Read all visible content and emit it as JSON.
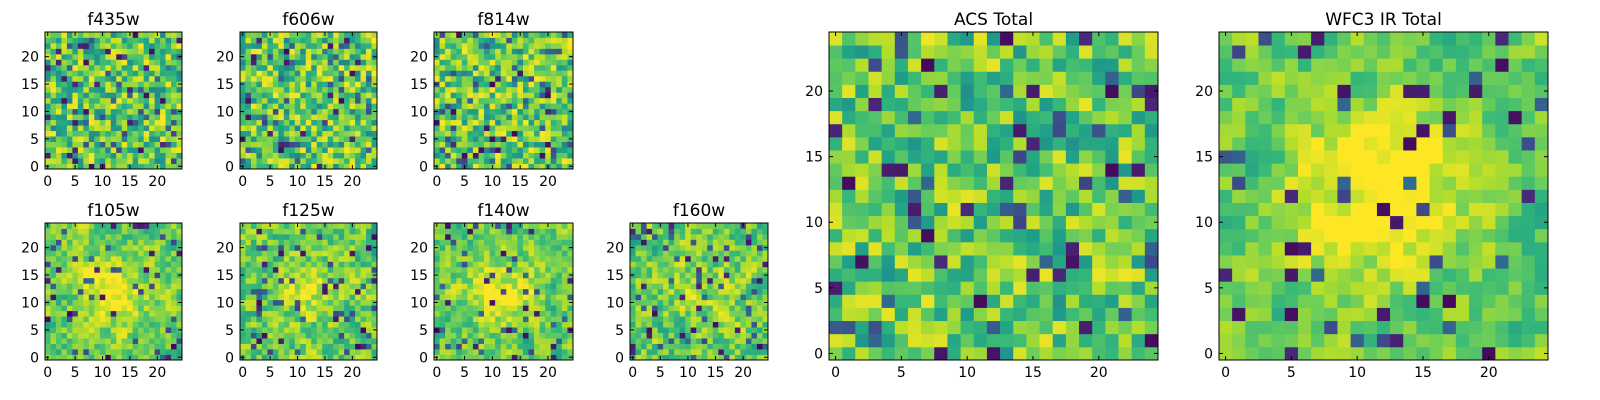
{
  "chart_data": [
    {
      "type": "heatmap",
      "title": "f435w",
      "grid_size": 25,
      "xticks": [
        0,
        5,
        10,
        15,
        20
      ],
      "yticks": [
        0,
        5,
        10,
        15,
        20
      ],
      "xlim": [
        -0.5,
        24.5
      ],
      "ylim": [
        -0.5,
        24.5
      ],
      "colormap": "viridis",
      "value_range": [
        0,
        1
      ],
      "pattern_seed": 11,
      "smoothness": 0.0,
      "blob": 0.0
    },
    {
      "type": "heatmap",
      "title": "f606w",
      "grid_size": 25,
      "xticks": [
        0,
        5,
        10,
        15,
        20
      ],
      "yticks": [
        0,
        5,
        10,
        15,
        20
      ],
      "xlim": [
        -0.5,
        24.5
      ],
      "ylim": [
        -0.5,
        24.5
      ],
      "colormap": "viridis",
      "value_range": [
        0,
        1
      ],
      "pattern_seed": 23,
      "smoothness": 0.0,
      "blob": 0.0
    },
    {
      "type": "heatmap",
      "title": "f814w",
      "grid_size": 25,
      "xticks": [
        0,
        5,
        10,
        15,
        20
      ],
      "yticks": [
        0,
        5,
        10,
        15,
        20
      ],
      "xlim": [
        -0.5,
        24.5
      ],
      "ylim": [
        -0.5,
        24.5
      ],
      "colormap": "viridis",
      "value_range": [
        0,
        1
      ],
      "pattern_seed": 37,
      "smoothness": 0.0,
      "blob": 0.0
    },
    {
      "type": "heatmap",
      "title": "f105w",
      "grid_size": 25,
      "xticks": [
        0,
        5,
        10,
        15,
        20
      ],
      "yticks": [
        0,
        5,
        10,
        15,
        20
      ],
      "xlim": [
        -0.5,
        24.5
      ],
      "ylim": [
        -0.5,
        24.5
      ],
      "colormap": "viridis",
      "value_range": [
        0,
        1
      ],
      "pattern_seed": 41,
      "smoothness": 0.5,
      "blob": 0.25
    },
    {
      "type": "heatmap",
      "title": "f125w",
      "grid_size": 25,
      "xticks": [
        0,
        5,
        10,
        15,
        20
      ],
      "yticks": [
        0,
        5,
        10,
        15,
        20
      ],
      "xlim": [
        -0.5,
        24.5
      ],
      "ylim": [
        -0.5,
        24.5
      ],
      "colormap": "viridis",
      "value_range": [
        0,
        1
      ],
      "pattern_seed": 53,
      "smoothness": 0.4,
      "blob": 0.15
    },
    {
      "type": "heatmap",
      "title": "f140w",
      "grid_size": 25,
      "xticks": [
        0,
        5,
        10,
        15,
        20
      ],
      "yticks": [
        0,
        5,
        10,
        15,
        20
      ],
      "xlim": [
        -0.5,
        24.5
      ],
      "ylim": [
        -0.5,
        24.5
      ],
      "colormap": "viridis",
      "value_range": [
        0,
        1
      ],
      "pattern_seed": 67,
      "smoothness": 0.5,
      "blob": 0.2
    },
    {
      "type": "heatmap",
      "title": "f160w",
      "grid_size": 25,
      "xticks": [
        0,
        5,
        10,
        15,
        20
      ],
      "yticks": [
        0,
        5,
        10,
        15,
        20
      ],
      "xlim": [
        -0.5,
        24.5
      ],
      "ylim": [
        -0.5,
        24.5
      ],
      "colormap": "viridis",
      "value_range": [
        0,
        1
      ],
      "pattern_seed": 79,
      "smoothness": 0.4,
      "blob": 0.1
    },
    {
      "type": "heatmap",
      "title": "ACS Total",
      "grid_size": 25,
      "xticks": [
        0,
        5,
        10,
        15,
        20
      ],
      "yticks": [
        0,
        5,
        10,
        15,
        20
      ],
      "xlim": [
        -0.5,
        24.5
      ],
      "ylim": [
        -0.5,
        24.5
      ],
      "colormap": "viridis",
      "value_range": [
        0,
        1
      ],
      "pattern_seed": 97,
      "smoothness": 0.15,
      "blob": 0.0
    },
    {
      "type": "heatmap",
      "title": "WFC3 IR Total",
      "grid_size": 25,
      "xticks": [
        0,
        5,
        10,
        15,
        20
      ],
      "yticks": [
        0,
        5,
        10,
        15,
        20
      ],
      "xlim": [
        -0.5,
        24.5
      ],
      "ylim": [
        -0.5,
        24.5
      ],
      "colormap": "viridis",
      "value_range": [
        0,
        1
      ],
      "pattern_seed": 113,
      "smoothness": 0.6,
      "blob": 0.35
    }
  ]
}
